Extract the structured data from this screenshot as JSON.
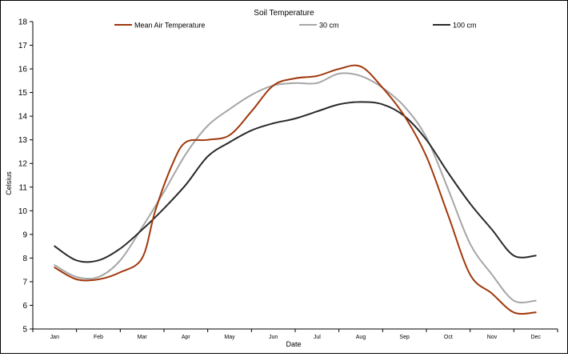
{
  "chart_data": {
    "type": "line",
    "title": "Soil Temperature",
    "xlabel": "Date",
    "ylabel": "Celsius",
    "ylim": [
      5,
      18
    ],
    "yticks": [
      5,
      6,
      7,
      8,
      9,
      10,
      11,
      12,
      13,
      14,
      15,
      16,
      17,
      18
    ],
    "categories": [
      "Jan",
      "Feb",
      "Mar",
      "Apr",
      "May",
      "Jun",
      "Jul",
      "Aug",
      "Sep",
      "Oct",
      "Nov",
      "Dec"
    ],
    "grid": false,
    "legend_position": "top",
    "series": [
      {
        "name": "Mean Air Temperature",
        "color": "#a0380c",
        "x": [
          0,
          0.5,
          1,
          1.5,
          2,
          2.3,
          2.7,
          3,
          3.5,
          4,
          4.5,
          5,
          5.5,
          6,
          6.5,
          7,
          7.5,
          8,
          8.5,
          9,
          9.5,
          10,
          10.5,
          11
        ],
        "values": [
          7.6,
          7.1,
          7.1,
          7.4,
          8.0,
          10.0,
          12.0,
          12.9,
          13.0,
          13.2,
          14.2,
          15.3,
          15.6,
          15.7,
          16.0,
          16.1,
          15.2,
          14.0,
          12.3,
          9.8,
          7.3,
          6.5,
          5.7,
          5.7
        ]
      },
      {
        "name": "30 cm",
        "color": "#a6a6a6",
        "x": [
          0,
          0.5,
          1,
          1.5,
          2,
          2.5,
          3,
          3.5,
          4,
          4.5,
          5,
          5.5,
          6,
          6.5,
          7,
          7.5,
          8,
          8.5,
          9,
          9.5,
          10,
          10.5,
          11
        ],
        "values": [
          7.7,
          7.2,
          7.2,
          7.9,
          9.3,
          10.8,
          12.4,
          13.6,
          14.3,
          14.9,
          15.3,
          15.4,
          15.4,
          15.8,
          15.7,
          15.2,
          14.4,
          13.1,
          10.9,
          8.6,
          7.3,
          6.2,
          6.2
        ]
      },
      {
        "name": "100 cm",
        "color": "#2a2a2a",
        "x": [
          0,
          0.5,
          1,
          1.5,
          2,
          2.5,
          3,
          3.5,
          4,
          4.5,
          5,
          5.5,
          6,
          6.5,
          7,
          7.5,
          8,
          8.5,
          9,
          9.5,
          10,
          10.5,
          11
        ],
        "values": [
          8.5,
          7.9,
          7.9,
          8.4,
          9.2,
          10.1,
          11.1,
          12.3,
          12.9,
          13.4,
          13.7,
          13.9,
          14.2,
          14.5,
          14.6,
          14.5,
          14.0,
          13.0,
          11.6,
          10.3,
          9.2,
          8.1,
          8.1
        ]
      }
    ]
  }
}
